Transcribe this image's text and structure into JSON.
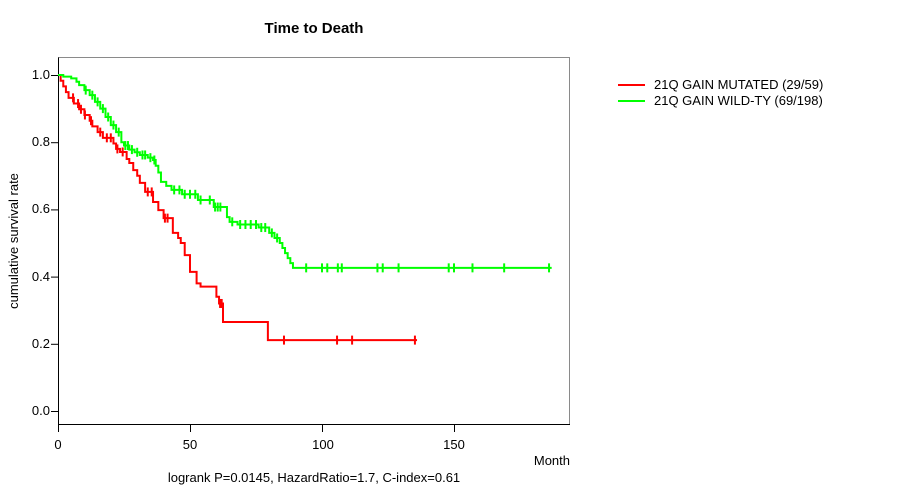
{
  "chart_data": {
    "type": "line",
    "subtype": "kaplan-meier-step",
    "title": "Time to Death",
    "xlabel": "Month",
    "ylabel": "cumulative survival rate",
    "annotation": "logrank P=0.0145, HazardRatio=1.7, C-index=0.61",
    "xticks": [
      "0",
      "50",
      "100",
      "150"
    ],
    "yticks": [
      "1.0",
      "0.8",
      "0.6",
      "0.4",
      "0.2",
      "0.0"
    ],
    "xlim": [
      0,
      194
    ],
    "ylim": [
      0.0,
      1.04
    ],
    "grid": false,
    "legend_position": "outside-top-right",
    "box_color": "#8a8a8a",
    "axis_color": "#000000",
    "series": [
      {
        "name": "21Q GAIN MUTATED (29/59)",
        "color": "#ff0000",
        "end_month": 136,
        "points": [
          [
            0,
            1.0
          ],
          [
            1,
            0.983
          ],
          [
            2,
            0.966
          ],
          [
            3,
            0.949
          ],
          [
            4,
            0.932
          ],
          [
            6,
            0.915
          ],
          [
            8,
            0.898
          ],
          [
            10,
            0.881
          ],
          [
            12,
            0.864
          ],
          [
            13,
            0.847
          ],
          [
            15,
            0.83
          ],
          [
            17,
            0.813
          ],
          [
            21,
            0.796
          ],
          [
            22,
            0.78
          ],
          [
            23.5,
            0.771
          ],
          [
            26,
            0.75
          ],
          [
            27,
            0.738
          ],
          [
            28.5,
            0.717
          ],
          [
            30,
            0.7
          ],
          [
            31,
            0.679
          ],
          [
            33,
            0.652
          ],
          [
            36,
            0.622
          ],
          [
            38,
            0.598
          ],
          [
            40,
            0.574
          ],
          [
            43.5,
            0.53
          ],
          [
            45.5,
            0.515
          ],
          [
            46.5,
            0.5
          ],
          [
            48,
            0.464
          ],
          [
            50,
            0.414
          ],
          [
            52.5,
            0.38
          ],
          [
            54,
            0.37
          ],
          [
            60,
            0.34
          ],
          [
            61,
            0.32
          ],
          [
            62.5,
            0.265
          ],
          [
            79.5,
            0.211
          ]
        ],
        "censor_months": [
          5.7,
          7.6,
          8.7,
          10.2,
          12.5,
          16,
          18.5,
          20,
          22.5,
          24.5,
          34,
          35.5,
          40.5,
          41.5,
          61.4,
          62,
          85.6,
          105.7,
          111.4,
          135.2
        ]
      },
      {
        "name": "21Q GAIN WILD-TY (69/198)",
        "color": "#00ff00",
        "end_month": 187,
        "points": [
          [
            0,
            1.0
          ],
          [
            2,
            0.995
          ],
          [
            5,
            0.99
          ],
          [
            7,
            0.98
          ],
          [
            8,
            0.97
          ],
          [
            10,
            0.955
          ],
          [
            12,
            0.94
          ],
          [
            14,
            0.92
          ],
          [
            16,
            0.9
          ],
          [
            18,
            0.875
          ],
          [
            20,
            0.851
          ],
          [
            22,
            0.83
          ],
          [
            24,
            0.8
          ],
          [
            25,
            0.79
          ],
          [
            27,
            0.778
          ],
          [
            29,
            0.77
          ],
          [
            31,
            0.762
          ],
          [
            34,
            0.754
          ],
          [
            36,
            0.747
          ],
          [
            37,
            0.73
          ],
          [
            38,
            0.71
          ],
          [
            39,
            0.682
          ],
          [
            41,
            0.67
          ],
          [
            43,
            0.658
          ],
          [
            47,
            0.645
          ],
          [
            53,
            0.628
          ],
          [
            59,
            0.607
          ],
          [
            64,
            0.577
          ],
          [
            65,
            0.563
          ],
          [
            68,
            0.555
          ],
          [
            76,
            0.546
          ],
          [
            80,
            0.53
          ],
          [
            82,
            0.515
          ],
          [
            84,
            0.5
          ],
          [
            85,
            0.485
          ],
          [
            86,
            0.47
          ],
          [
            87,
            0.455
          ],
          [
            88,
            0.44
          ],
          [
            89,
            0.426
          ]
        ],
        "censor_months": [
          10.5,
          13,
          15,
          17,
          19,
          21,
          23,
          25.5,
          26.5,
          28,
          30,
          32,
          33,
          35,
          36.5,
          44,
          46,
          48,
          50,
          52,
          54,
          57.5,
          59.5,
          60.5,
          61.5,
          66,
          69,
          71,
          73,
          75,
          77,
          78.5,
          81,
          83,
          94,
          100,
          102,
          106,
          107.5,
          121,
          123,
          129,
          148,
          150,
          157,
          169,
          186
        ]
      }
    ]
  }
}
